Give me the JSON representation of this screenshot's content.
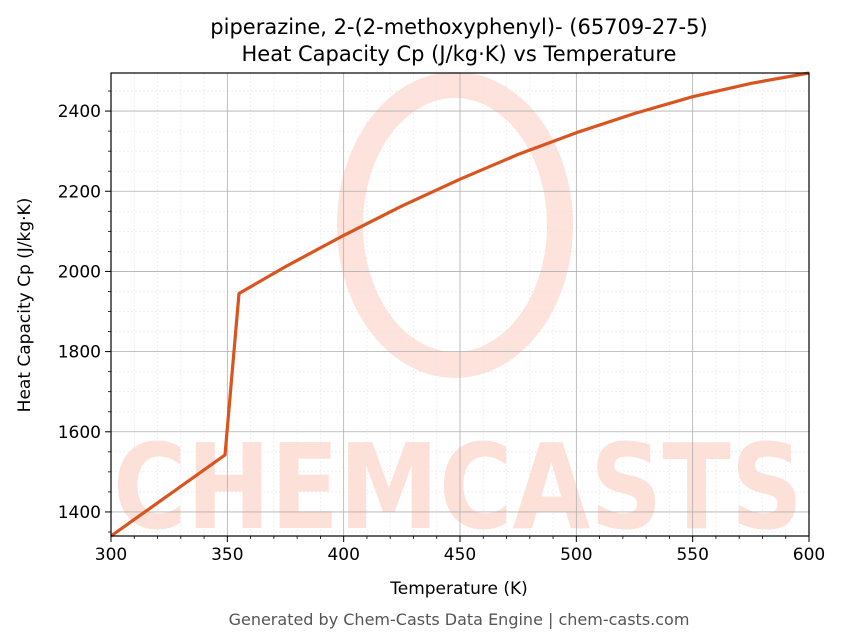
{
  "chart_data": {
    "type": "line",
    "title_line1": "piperazine, 2-(2-methoxyphenyl)- (65709-27-5)",
    "title_line2": "Heat Capacity Cp (J/kg·K) vs Temperature",
    "xlabel": "Temperature (K)",
    "ylabel": "Heat Capacity Cp (J/kg·K)",
    "xlim": [
      300,
      600
    ],
    "ylim": [
      1340,
      2495
    ],
    "xticks": [
      300,
      350,
      400,
      450,
      500,
      550,
      600
    ],
    "yticks": [
      1400,
      1600,
      1800,
      2000,
      2200,
      2400
    ],
    "grid": true,
    "series": [
      {
        "x": [
          300,
          349,
          355,
          375,
          400,
          425,
          450,
          475,
          500,
          525,
          550,
          575,
          600
        ],
        "y": [
          1340,
          1542,
          1945,
          2012,
          2090,
          2163,
          2230,
          2292,
          2346,
          2394,
          2436,
          2469,
          2495
        ]
      }
    ]
  },
  "colors": {
    "line": "#d9541e",
    "watermark": "#fde0d8",
    "grid_major": "#b0b0b0",
    "grid_minor": "#e6e6e6"
  },
  "watermark_text": "CHEMCASTS",
  "footer": "Generated by Chem-Casts Data Engine | chem-casts.com"
}
